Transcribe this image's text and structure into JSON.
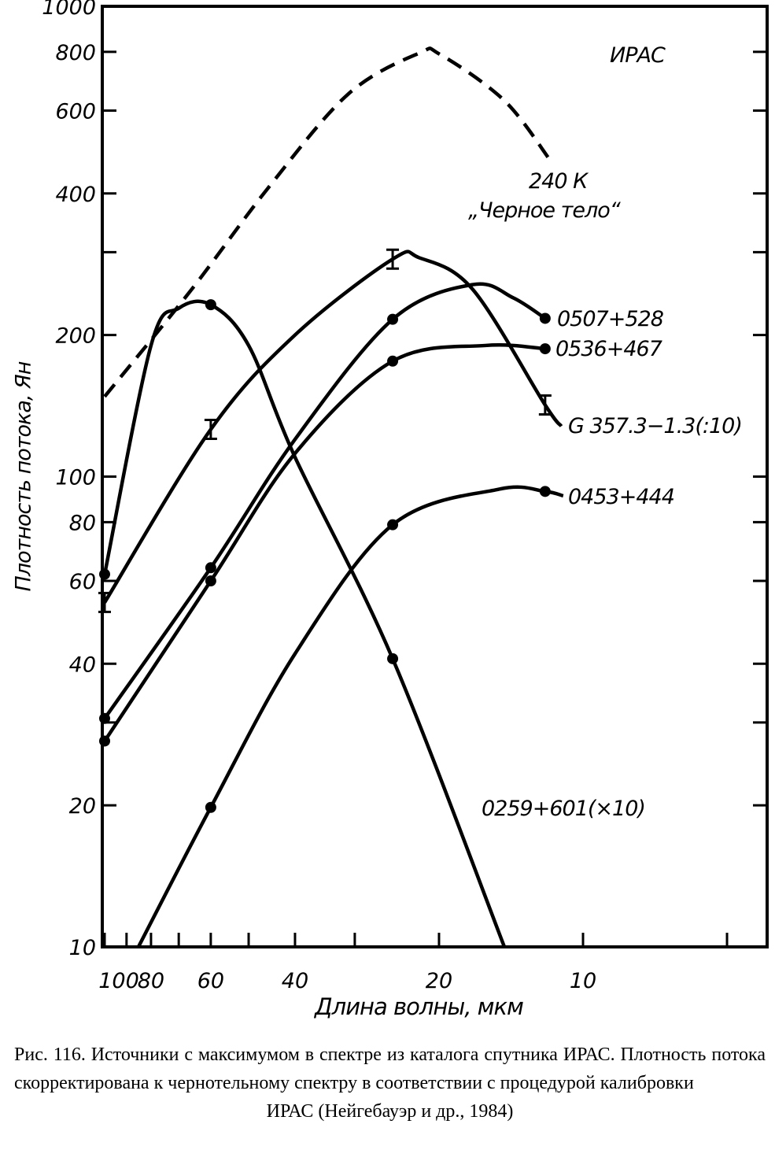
{
  "chart_data": {
    "type": "line",
    "title": "ИРАС",
    "xlabel": "Длина волны, мкм",
    "ylabel": "Плотность потока, Ян",
    "xscale": "log",
    "yscale": "log",
    "xlim": [
      100,
      4.1
    ],
    "ylim": [
      10,
      1000
    ],
    "x_ticks": [
      100,
      80,
      60,
      40,
      20,
      10
    ],
    "x_minor_ticks": [
      90,
      70,
      50,
      30,
      5
    ],
    "y_ticks": [
      10,
      20,
      40,
      60,
      80,
      100,
      200,
      400,
      600,
      800,
      1000
    ],
    "y_minor_ticks": [
      30,
      300
    ],
    "series": [
      {
        "name": "0507+528",
        "style": "solid-dots",
        "points": [
          [
            100,
            30.6
          ],
          [
            60,
            64
          ],
          [
            25,
            216
          ],
          [
            12,
            217
          ]
        ],
        "curve": [
          [
            100,
            30.6
          ],
          [
            60,
            64
          ],
          [
            40,
            120
          ],
          [
            25,
            216
          ],
          [
            17,
            256
          ],
          [
            14,
            240
          ],
          [
            12,
            217
          ]
        ]
      },
      {
        "name": "0536+467",
        "style": "solid-dots",
        "points": [
          [
            100,
            27.4
          ],
          [
            60,
            60
          ],
          [
            25,
            176
          ],
          [
            12,
            187
          ]
        ],
        "curve": [
          [
            100,
            27.4
          ],
          [
            60,
            60
          ],
          [
            40,
            112
          ],
          [
            25,
            176
          ],
          [
            16,
            190
          ],
          [
            12,
            187
          ]
        ]
      },
      {
        "name": "G 357.3−1.3(:10)",
        "style": "solid-errorbars",
        "points": [
          [
            100,
            54
          ],
          [
            60,
            126
          ],
          [
            25,
            290
          ],
          [
            12,
            142
          ]
        ],
        "curve": [
          [
            100,
            54
          ],
          [
            60,
            126
          ],
          [
            40,
            200
          ],
          [
            25,
            290
          ],
          [
            22,
            292
          ],
          [
            17,
            250
          ],
          [
            12,
            142
          ],
          [
            11.1,
            128
          ]
        ]
      },
      {
        "name": "0453+444",
        "style": "solid-dots",
        "points": [
          [
            60,
            19.8
          ],
          [
            25,
            79
          ],
          [
            12,
            93
          ]
        ],
        "curve": [
          [
            85,
            10
          ],
          [
            60,
            19.8
          ],
          [
            40,
            42
          ],
          [
            25,
            79
          ],
          [
            15,
            94
          ],
          [
            12,
            93
          ],
          [
            11,
            91
          ]
        ]
      },
      {
        "name": "0259+601(×10)",
        "style": "solid-dots",
        "points": [
          [
            100,
            62
          ],
          [
            60,
            232
          ],
          [
            25,
            41
          ]
        ],
        "curve": [
          [
            100,
            62
          ],
          [
            80,
            190
          ],
          [
            70,
            228
          ],
          [
            60,
            232
          ],
          [
            50,
            190
          ],
          [
            40,
            110
          ],
          [
            25,
            41
          ],
          [
            14.6,
            10
          ]
        ]
      },
      {
        "name": "240 K",
        "subtitle": "„Черное тело“",
        "style": "dashed",
        "points": [],
        "curve": [
          [
            100,
            148
          ],
          [
            66,
            249
          ],
          [
            45.6,
            410
          ],
          [
            31,
            650
          ],
          [
            22,
            795
          ],
          [
            19.9,
            790
          ],
          [
            14.6,
            630
          ],
          [
            11.7,
            470
          ]
        ]
      }
    ]
  },
  "labels": {
    "iras": "ИРАС",
    "bb_temp": "240 К",
    "bb_name": "„Черное тело“",
    "s0507": "0507+528",
    "s0536": "0536+467",
    "sG357": "G 357.3−1.3(:10)",
    "s0453": "0453+444",
    "s0259": "0259+601(×10)"
  },
  "caption": {
    "text": "Рис. 116. Источники с максимумом в спектре из каталога спутника ИРАС. Плотность потока скорректирована к черно­тельному спектру в соответствии с процедурой калибровки",
    "last_line": "ИРАС (Нейгебауэр и др., 1984)"
  }
}
